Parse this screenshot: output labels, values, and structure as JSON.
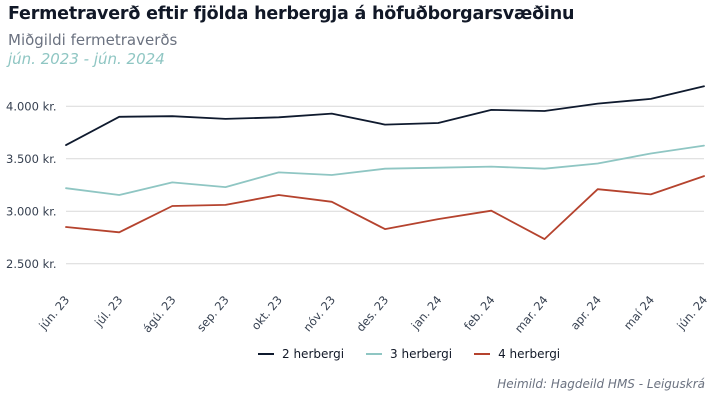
{
  "chart_data": {
    "type": "line",
    "title": "Fermetraverð eftir fjölda herbergja á höfuðborgarsvæðinu",
    "subtitle": "Miðgildi fermetraverðs",
    "period": "jún. 2023 - jún. 2024",
    "source": "Heimild: Hagdeild HMS  - Leiguskrá",
    "categories": [
      "jún. 23",
      "júl. 23",
      "ágú. 23",
      "sep. 23",
      "okt. 23",
      "nóv. 23",
      "des. 23",
      "jan. 24",
      "feb. 24",
      "mar. 24",
      "apr. 24",
      "maí 24",
      "jún. 24"
    ],
    "y_ticks": [
      {
        "value": 2500,
        "label": "2.500 kr."
      },
      {
        "value": 3000,
        "label": "3.000 kr."
      },
      {
        "value": 3500,
        "label": "3.500 kr."
      },
      {
        "value": 4000,
        "label": "4.000 kr."
      }
    ],
    "ylim": [
      2250,
      4250
    ],
    "grid": true,
    "legend_position": "bottom",
    "series": [
      {
        "name": "2 herbergi",
        "color": "#0f1a2e",
        "values": [
          3630,
          3900,
          3905,
          3880,
          3895,
          3930,
          3825,
          3840,
          3965,
          3955,
          4025,
          4070,
          4190
        ]
      },
      {
        "name": "3 herbergi",
        "color": "#8fc6c3",
        "values": [
          3220,
          3155,
          3275,
          3230,
          3370,
          3345,
          3405,
          3415,
          3425,
          3405,
          3455,
          3550,
          3625
        ]
      },
      {
        "name": "4 herbergi",
        "color": "#b5432e",
        "values": [
          2850,
          2800,
          3050,
          3060,
          3155,
          3090,
          2830,
          2925,
          3005,
          2735,
          3210,
          3160,
          3335
        ]
      }
    ]
  }
}
